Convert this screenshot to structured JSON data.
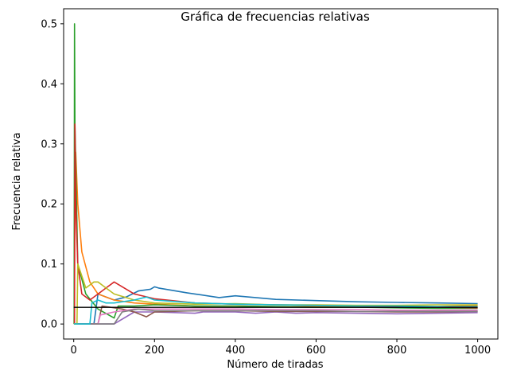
{
  "chart_data": {
    "type": "line",
    "title": "Gráfica de frecuencias relativas",
    "xlabel": "Número de tiradas",
    "ylabel": "Frecuencia relativa",
    "xlim": [
      -25,
      1050
    ],
    "ylim": [
      -0.025,
      0.525
    ],
    "xticks": [
      0,
      200,
      400,
      600,
      800,
      1000
    ],
    "yticks": [
      0.0,
      0.1,
      0.2,
      0.3,
      0.4,
      0.5
    ],
    "xtick_labels": [
      "0",
      "200",
      "400",
      "600",
      "800",
      "1000"
    ],
    "ytick_labels": [
      "0.0",
      "0.1",
      "0.2",
      "0.3",
      "0.4",
      "0.5"
    ],
    "grid": false,
    "reference_line": {
      "y": 0.0278,
      "x": [
        0,
        1000
      ],
      "color": "#000000"
    },
    "series": [
      {
        "color": "#1f77b4",
        "x": [
          1,
          50,
          60,
          100,
          130,
          160,
          190,
          200,
          210,
          280,
          300,
          360,
          400,
          500,
          600,
          700,
          800,
          900,
          1000
        ],
        "values": [
          0.0,
          0.0,
          0.05,
          0.04,
          0.045,
          0.055,
          0.058,
          0.062,
          0.06,
          0.052,
          0.05,
          0.044,
          0.047,
          0.041,
          0.039,
          0.037,
          0.036,
          0.035,
          0.034
        ]
      },
      {
        "color": "#ff7f0e",
        "x": [
          1,
          3,
          5,
          10,
          20,
          40,
          60,
          80,
          100,
          150,
          200,
          300,
          400,
          500,
          600,
          700,
          800,
          900,
          1000
        ],
        "values": [
          0.0,
          0.18,
          0.286,
          0.2,
          0.12,
          0.07,
          0.05,
          0.045,
          0.04,
          0.035,
          0.033,
          0.03,
          0.03,
          0.029,
          0.029,
          0.029,
          0.028,
          0.029,
          0.031
        ]
      },
      {
        "color": "#2ca02c",
        "x": [
          1,
          2,
          3,
          10,
          30,
          60,
          100,
          110,
          150,
          200,
          300,
          400,
          500,
          600,
          700,
          800,
          900,
          1000
        ],
        "values": [
          0.0,
          0.5,
          0.333,
          0.1,
          0.05,
          0.025,
          0.01,
          0.03,
          0.03,
          0.032,
          0.03,
          0.03,
          0.029,
          0.028,
          0.028,
          0.027,
          0.026,
          0.026
        ]
      },
      {
        "color": "#d62728",
        "x": [
          1,
          2,
          3,
          5,
          10,
          20,
          40,
          60,
          80,
          100,
          150,
          200,
          300,
          400,
          500,
          600,
          700,
          800,
          900,
          1000
        ],
        "values": [
          0.0,
          0.0,
          0.333,
          0.2,
          0.1,
          0.05,
          0.04,
          0.05,
          0.06,
          0.07,
          0.05,
          0.042,
          0.035,
          0.033,
          0.032,
          0.031,
          0.03,
          0.029,
          0.028,
          0.027
        ]
      },
      {
        "color": "#9467bd",
        "x": [
          1,
          100,
          150,
          200,
          300,
          320,
          400,
          450,
          500,
          550,
          600,
          700,
          800,
          900,
          1000
        ],
        "values": [
          0.0,
          0.0,
          0.02,
          0.02,
          0.018,
          0.02,
          0.02,
          0.018,
          0.02,
          0.018,
          0.019,
          0.018,
          0.017,
          0.018,
          0.019
        ]
      },
      {
        "color": "#8c564b",
        "x": [
          1,
          60,
          70,
          120,
          150,
          180,
          200,
          300,
          400,
          500,
          600,
          700,
          800,
          900,
          1000
        ],
        "values": [
          0.0,
          0.0,
          0.03,
          0.025,
          0.02,
          0.012,
          0.02,
          0.022,
          0.022,
          0.021,
          0.021,
          0.021,
          0.02,
          0.02,
          0.021
        ]
      },
      {
        "color": "#e377c2",
        "x": [
          1,
          60,
          66,
          100,
          150,
          200,
          300,
          400,
          500,
          600,
          700,
          800,
          900,
          1000
        ],
        "values": [
          0.0,
          0.0,
          0.015,
          0.02,
          0.025,
          0.025,
          0.025,
          0.025,
          0.024,
          0.024,
          0.024,
          0.023,
          0.023,
          0.023
        ]
      },
      {
        "color": "#7f7f7f",
        "x": [
          1,
          100,
          120,
          160,
          200,
          300,
          400,
          500,
          600,
          700,
          800,
          900,
          1000
        ],
        "values": [
          0.0,
          0.0,
          0.02,
          0.025,
          0.022,
          0.022,
          0.022,
          0.022,
          0.022,
          0.021,
          0.021,
          0.021,
          0.021
        ]
      },
      {
        "color": "#bcbd22",
        "x": [
          1,
          8,
          10,
          20,
          30,
          40,
          50,
          60,
          80,
          100,
          150,
          200,
          300,
          400,
          500,
          600,
          700,
          800,
          900,
          1000
        ],
        "values": [
          0.0,
          0.0,
          0.1,
          0.08,
          0.06,
          0.065,
          0.07,
          0.07,
          0.06,
          0.05,
          0.04,
          0.035,
          0.033,
          0.034,
          0.032,
          0.032,
          0.031,
          0.031,
          0.032,
          0.032
        ]
      },
      {
        "color": "#17becf",
        "x": [
          1,
          40,
          45,
          60,
          80,
          100,
          150,
          180,
          200,
          300,
          400,
          500,
          600,
          700,
          800,
          900,
          1000
        ],
        "values": [
          0.0,
          0.0,
          0.035,
          0.04,
          0.035,
          0.035,
          0.04,
          0.045,
          0.04,
          0.035,
          0.033,
          0.032,
          0.031,
          0.03,
          0.03,
          0.029,
          0.029
        ]
      }
    ]
  }
}
